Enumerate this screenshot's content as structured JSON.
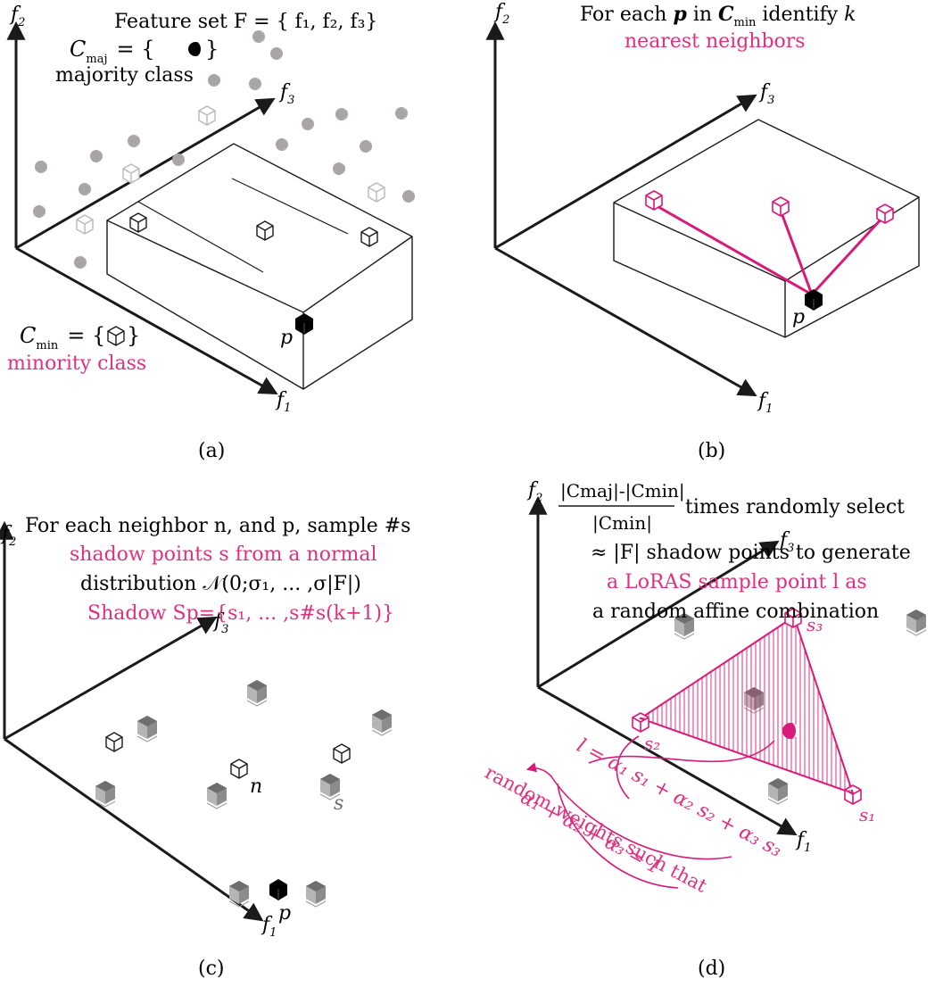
{
  "colors": {
    "accent": "#e0307f",
    "ink": "#1a1a1a",
    "majority": "#a9a5a6",
    "shadow": "#8c8c8c"
  },
  "panel_a": {
    "caption": "(a)",
    "feature_set": "Feature set F = { f₁, f₂, f₃}",
    "cmaj": "C",
    "cmaj_sub": "maj",
    "cmaj_eq": "= {",
    "cmaj_close": "}",
    "majority_label": "majority class",
    "cmin": "C",
    "cmin_sub": "min",
    "cmin_eq": "= {",
    "cmin_close": "}",
    "minority_label": "minority class",
    "p_label": "p",
    "axis_f1": "f",
    "axis_f1_sub": "1",
    "axis_f2": "f",
    "axis_f2_sub": "2",
    "axis_f3": "f",
    "axis_f3_sub": "3"
  },
  "panel_b": {
    "caption": "(b)",
    "line1_a": "For each ",
    "line1_p": "p",
    "line1_b": " in ",
    "line1_c": "C",
    "line1_sub": "min",
    "line1_d": " identify ",
    "line1_k": "k",
    "line2": "nearest neighbors",
    "p_label": "p",
    "axis_f1": "f",
    "axis_f1_sub": "1",
    "axis_f2": "f",
    "axis_f2_sub": "2",
    "axis_f3": "f",
    "axis_f3_sub": "3"
  },
  "panel_c": {
    "caption": "(c)",
    "line1": "For each neighbor n, and p, sample #s",
    "line2": "shadow points s from a normal",
    "line3": "distribution 𝒩(0;σ₁, ... ,σ|F|)",
    "line4": "Shadow Sp={s₁, ... ,s#s(k+1)}",
    "n_label": "n",
    "s_label": "s",
    "p_label": "p",
    "axis_f1": "f",
    "axis_f1_sub": "1",
    "axis_f2": "f",
    "axis_f2_sub": "2",
    "axis_f3": "f",
    "axis_f3_sub": "3"
  },
  "panel_d": {
    "caption": "(d)",
    "frac_num": "|Cmaj|-|Cmin|",
    "frac_den": "|Cmin|",
    "line1": "times randomly select",
    "line2": "≈ |F| shadow points to generate",
    "line3": "a LoRAS sample point l as",
    "line4": "a random affine combination",
    "eq1": "l = α₁ s₁ + α₂ s₂ + α₃ s₃",
    "eq2": "random weights such that",
    "eq3": "α₁ + α₂ + α₃ = 1",
    "s1_label": "s₁",
    "s2_label": "s₂",
    "s3_label": "s₃",
    "axis_f1": "f",
    "axis_f1_sub": "1",
    "axis_f2": "f",
    "axis_f2_sub": "2",
    "axis_f3": "f",
    "axis_f3_sub": "3"
  }
}
